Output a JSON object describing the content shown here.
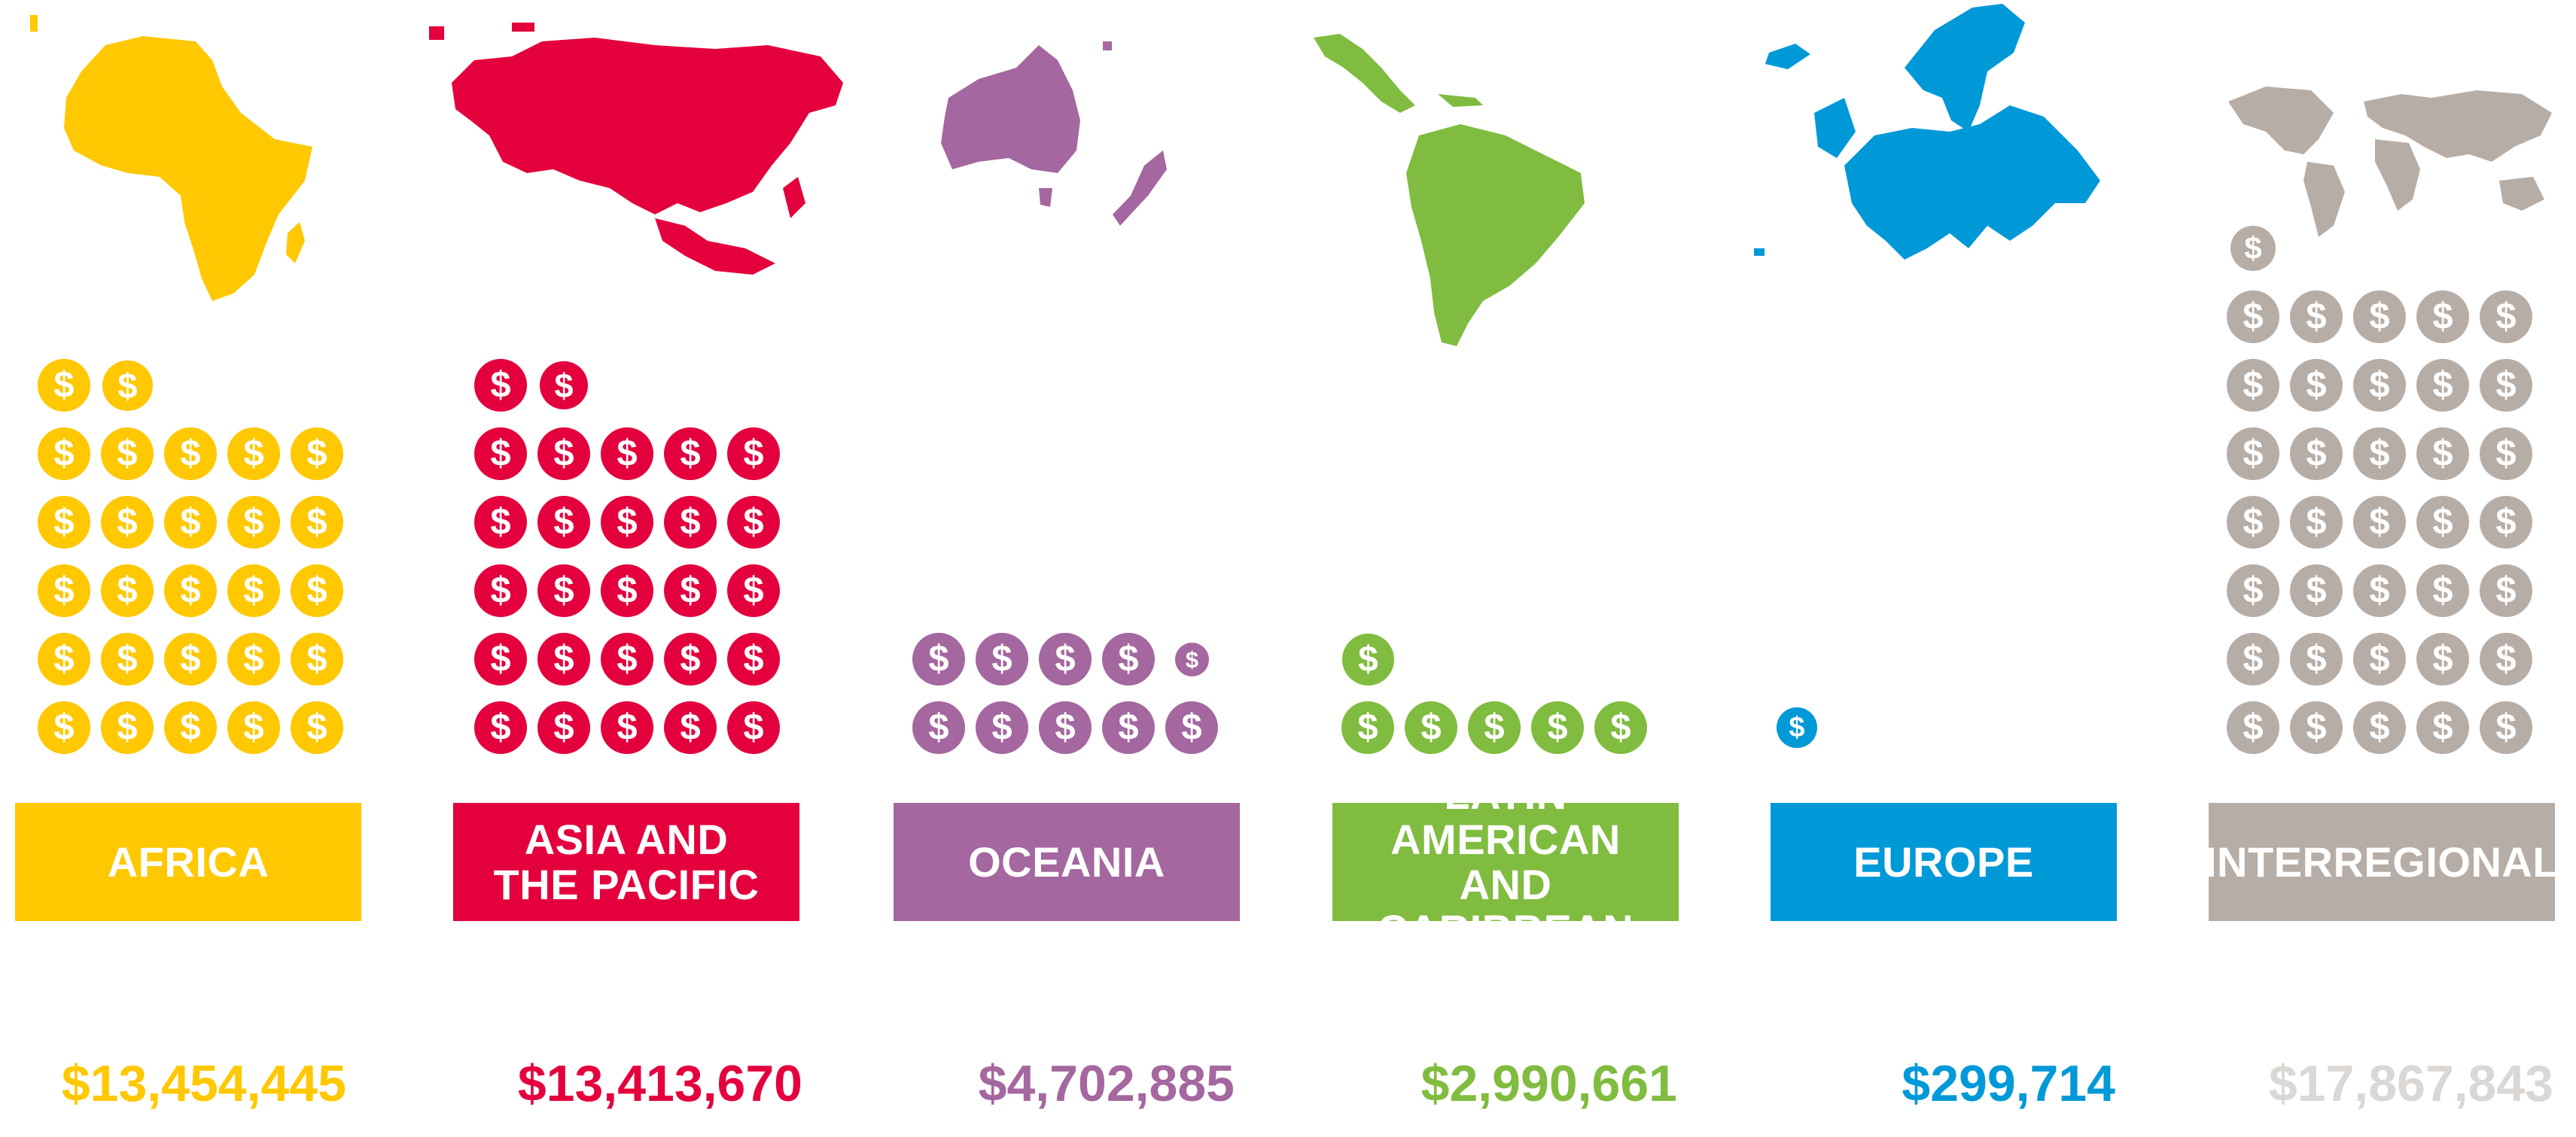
{
  "chart_data": {
    "type": "pictogram",
    "unit_symbol": "$",
    "regions": [
      {
        "name": "AFRICA",
        "amount_label": "$13,454,445",
        "value": 13454445,
        "color": "#FFC800",
        "map_icon": "africa-map-icon"
      },
      {
        "name": "ASIA AND\nTHE PACIFIC",
        "amount_label": "$13,413,670",
        "value": 13413670,
        "color": "#E4003D",
        "map_icon": "asia-pacific-map-icon"
      },
      {
        "name": "OCEANIA",
        "amount_label": "$4,702,885",
        "value": 4702885,
        "color": "#A4679F",
        "map_icon": "oceania-map-icon"
      },
      {
        "name": "LATIN AMERICAN\nAND CARIBBEAN",
        "amount_label": "$2,990,661",
        "value": 2990661,
        "color": "#80BC3F",
        "map_icon": "latin-america-map-icon"
      },
      {
        "name": "EUROPE",
        "amount_label": "$299,714",
        "value": 299714,
        "color": "#0099D8",
        "map_icon": "europe-map-icon"
      },
      {
        "name": "INTERREGIONAL",
        "amount_label": "$17,867,843",
        "value": 17867843,
        "color": "#B7ADA7",
        "amount_color": "#DAD7D5",
        "map_icon": "world-map-icon"
      }
    ]
  }
}
